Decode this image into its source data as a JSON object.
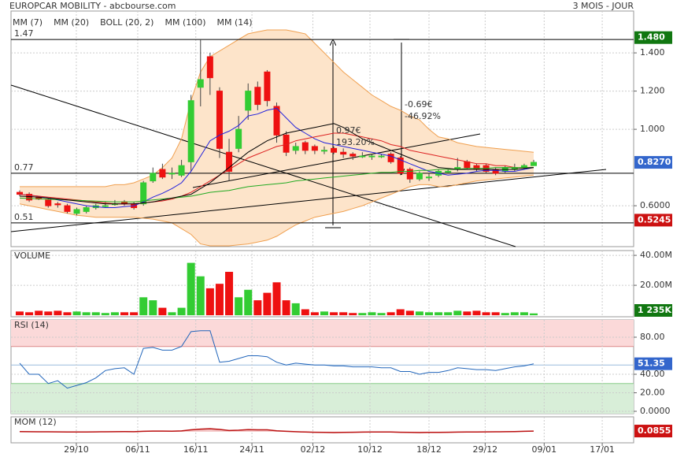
{
  "chart_data": [
    {
      "type": "candlestick",
      "title": "EUROPCAR MOBILITY - abcbourse.com",
      "subtitle": "3 MOIS - JOUR",
      "open": [
        0.67,
        0.66,
        0.645,
        0.63,
        0.61,
        0.6,
        0.56,
        0.57,
        0.59,
        0.6,
        0.61,
        0.62,
        0.61,
        0.61,
        0.73,
        0.79,
        0.77,
        0.76,
        0.83,
        1.22,
        1.38,
        1.2,
        0.88,
        0.9,
        1.1,
        1.22,
        1.3,
        1.12,
        0.97,
        0.89,
        0.93,
        0.91,
        0.89,
        0.9,
        0.88,
        0.87,
        0.86,
        0.86,
        0.86,
        0.87,
        0.85,
        0.79,
        0.74,
        0.75,
        0.76,
        0.78,
        0.79,
        0.83,
        0.81,
        0.81,
        0.79,
        0.78,
        0.79,
        0.8,
        0.81
      ],
      "high": [
        0.68,
        0.67,
        0.65,
        0.64,
        0.62,
        0.61,
        0.59,
        0.6,
        0.61,
        0.62,
        0.63,
        0.63,
        0.62,
        0.73,
        0.8,
        0.82,
        0.8,
        0.84,
        1.18,
        1.47,
        1.4,
        1.22,
        0.95,
        1.07,
        1.24,
        1.25,
        1.31,
        1.14,
        0.99,
        0.93,
        0.94,
        0.92,
        0.91,
        0.91,
        0.9,
        0.88,
        0.88,
        0.87,
        0.87,
        0.88,
        0.86,
        0.8,
        0.78,
        0.77,
        0.79,
        0.79,
        0.85,
        0.84,
        0.82,
        0.82,
        0.8,
        0.81,
        0.82,
        0.82,
        0.84
      ],
      "low": [
        0.65,
        0.62,
        0.63,
        0.59,
        0.59,
        0.56,
        0.55,
        0.56,
        0.58,
        0.59,
        0.6,
        0.6,
        0.58,
        0.6,
        0.72,
        0.74,
        0.74,
        0.75,
        0.78,
        1.12,
        1.18,
        0.85,
        0.73,
        0.88,
        1.05,
        1.1,
        1.12,
        0.93,
        0.86,
        0.87,
        0.87,
        0.87,
        0.87,
        0.87,
        0.85,
        0.84,
        0.85,
        0.84,
        0.85,
        0.82,
        0.76,
        0.72,
        0.73,
        0.73,
        0.75,
        0.77,
        0.78,
        0.79,
        0.78,
        0.77,
        0.76,
        0.77,
        0.78,
        0.79,
        0.81
      ],
      "close": [
        0.66,
        0.63,
        0.635,
        0.6,
        0.605,
        0.57,
        0.58,
        0.59,
        0.6,
        0.6,
        0.61,
        0.61,
        0.59,
        0.72,
        0.77,
        0.75,
        0.77,
        0.81,
        1.15,
        1.26,
        1.27,
        0.9,
        0.78,
        1.0,
        1.2,
        1.13,
        1.15,
        0.97,
        0.88,
        0.91,
        0.89,
        0.89,
        0.89,
        0.88,
        0.87,
        0.86,
        0.86,
        0.86,
        0.86,
        0.83,
        0.77,
        0.74,
        0.77,
        0.75,
        0.78,
        0.78,
        0.8,
        0.8,
        0.79,
        0.78,
        0.77,
        0.8,
        0.8,
        0.81,
        0.827
      ],
      "up_color": "#33cc33",
      "down_color": "#ee1111",
      "series": [
        {
          "name": "MM (7)",
          "color": "#2222dd",
          "values": [
            0.66,
            0.655,
            0.65,
            0.64,
            0.63,
            0.62,
            0.61,
            0.6,
            0.595,
            0.59,
            0.59,
            0.595,
            0.6,
            0.62,
            0.645,
            0.665,
            0.69,
            0.72,
            0.78,
            0.86,
            0.94,
            0.97,
            0.99,
            1.02,
            1.07,
            1.08,
            1.1,
            1.11,
            1.06,
            1.01,
            0.98,
            0.95,
            0.93,
            0.92,
            0.91,
            0.9,
            0.89,
            0.88,
            0.87,
            0.86,
            0.84,
            0.82,
            0.8,
            0.78,
            0.77,
            0.76,
            0.765,
            0.77,
            0.78,
            0.785,
            0.785,
            0.78,
            0.78,
            0.79,
            0.8
          ]
        },
        {
          "name": "MM (20)",
          "color": "#dd2222",
          "values": [
            0.66,
            0.655,
            0.65,
            0.645,
            0.64,
            0.635,
            0.63,
            0.625,
            0.62,
            0.615,
            0.61,
            0.61,
            0.61,
            0.615,
            0.62,
            0.625,
            0.635,
            0.65,
            0.67,
            0.7,
            0.73,
            0.76,
            0.79,
            0.82,
            0.85,
            0.87,
            0.89,
            0.91,
            0.92,
            0.94,
            0.95,
            0.96,
            0.97,
            0.98,
            0.98,
            0.97,
            0.96,
            0.95,
            0.94,
            0.92,
            0.91,
            0.89,
            0.88,
            0.87,
            0.86,
            0.85,
            0.84,
            0.83,
            0.82,
            0.82,
            0.81,
            0.81,
            0.8,
            0.8,
            0.8
          ]
        },
        {
          "name": "BOLL (20, 2)",
          "color": "#f0a050",
          "fill": "#fde4ca",
          "upper": [
            0.7,
            0.7,
            0.7,
            0.7,
            0.7,
            0.7,
            0.7,
            0.7,
            0.7,
            0.7,
            0.71,
            0.71,
            0.72,
            0.74,
            0.76,
            0.8,
            0.85,
            0.95,
            1.15,
            1.3,
            1.38,
            1.41,
            1.44,
            1.47,
            1.5,
            1.51,
            1.52,
            1.52,
            1.52,
            1.51,
            1.5,
            1.45,
            1.4,
            1.35,
            1.3,
            1.26,
            1.22,
            1.18,
            1.15,
            1.12,
            1.1,
            1.07,
            1.05,
            1.0,
            0.96,
            0.95,
            0.93,
            0.92,
            0.91,
            0.905,
            0.9,
            0.895,
            0.89,
            0.885,
            0.88
          ],
          "lower": [
            0.61,
            0.6,
            0.59,
            0.58,
            0.57,
            0.56,
            0.55,
            0.545,
            0.54,
            0.54,
            0.54,
            0.54,
            0.54,
            0.535,
            0.53,
            0.52,
            0.51,
            0.48,
            0.45,
            0.4,
            0.39,
            0.39,
            0.39,
            0.395,
            0.4,
            0.41,
            0.42,
            0.44,
            0.47,
            0.5,
            0.52,
            0.54,
            0.55,
            0.56,
            0.57,
            0.585,
            0.6,
            0.62,
            0.64,
            0.66,
            0.68,
            0.7,
            0.71,
            0.71,
            0.7,
            0.7,
            0.71,
            0.72,
            0.73,
            0.735,
            0.74,
            0.745,
            0.75,
            0.755,
            0.76
          ]
        },
        {
          "name": "MM (100)",
          "color": "#22aa22",
          "values": [
            0.64,
            0.638,
            0.636,
            0.634,
            0.632,
            0.63,
            0.628,
            0.626,
            0.624,
            0.622,
            0.62,
            0.62,
            0.62,
            0.625,
            0.63,
            0.635,
            0.64,
            0.645,
            0.65,
            0.66,
            0.67,
            0.675,
            0.68,
            0.69,
            0.7,
            0.705,
            0.71,
            0.715,
            0.72,
            0.73,
            0.735,
            0.74,
            0.745,
            0.75,
            0.755,
            0.76,
            0.765,
            0.77,
            0.775,
            0.775,
            0.78,
            0.78,
            0.785,
            0.785,
            0.79,
            0.79,
            0.79,
            0.795,
            0.795,
            0.795,
            0.8,
            0.8,
            0.8,
            0.8,
            0.8
          ]
        },
        {
          "name": "MM (14)",
          "color": "#000000",
          "values": [
            0.65,
            0.648,
            0.645,
            0.64,
            0.635,
            0.63,
            0.625,
            0.62,
            0.615,
            0.61,
            0.61,
            0.61,
            0.61,
            0.615,
            0.62,
            0.63,
            0.64,
            0.65,
            0.66,
            0.69,
            0.72,
            0.76,
            0.8,
            0.84,
            0.88,
            0.91,
            0.94,
            0.96,
            0.98,
            0.99,
            1.0,
            1.01,
            1.02,
            1.03,
            1.01,
            0.98,
            0.95,
            0.93,
            0.91,
            0.89,
            0.87,
            0.85,
            0.83,
            0.82,
            0.8,
            0.795,
            0.79,
            0.79,
            0.79,
            0.79,
            0.79,
            0.79,
            0.79,
            0.795,
            0.8
          ]
        }
      ],
      "levels": [
        1.47,
        0.77,
        0.51
      ],
      "badges": [
        {
          "value": 1.48,
          "label": "1.480",
          "color": "#117711"
        },
        {
          "value": 0.827,
          "label": "0.8270",
          "color": "#3366cc"
        },
        {
          "value": 0.5245,
          "label": "0.5245",
          "color": "#cc1111"
        }
      ],
      "annotations": [
        "-0.69€",
        "-46.92%",
        "0.97€",
        "193.20%"
      ],
      "xlim": [
        -0.91,
        64.5
      ],
      "xticks": [
        {
          "value": 5.95,
          "label": "29/10"
        },
        {
          "value": 12.4,
          "label": "06/11"
        },
        {
          "value": 18.5,
          "label": "16/11"
        },
        {
          "value": 24.4,
          "label": "24/11"
        },
        {
          "value": 30.8,
          "label": "02/12"
        },
        {
          "value": 36.8,
          "label": "10/12"
        },
        {
          "value": 43.0,
          "label": "18/12"
        },
        {
          "value": 48.9,
          "label": "29/12"
        },
        {
          "value": 55.1,
          "label": "09/01"
        },
        {
          "value": 61.2,
          "label": "17/01"
        }
      ],
      "ylim": [
        0.386,
        1.619
      ],
      "yticks": [
        {
          "value": 0.6,
          "label": "0.6000"
        },
        {
          "value": 1.0,
          "label": "1.000"
        },
        {
          "value": 1.2,
          "label": "1.200"
        },
        {
          "value": 1.4,
          "label": "1.400"
        }
      ],
      "grid": true
    },
    {
      "type": "bar",
      "title": "VOLUME",
      "values": [
        2500000,
        2000000,
        3000000,
        2500000,
        3000000,
        2000000,
        2500000,
        2000000,
        2000000,
        1500000,
        2000000,
        2000000,
        2000000,
        12000000,
        10000000,
        5000000,
        2000000,
        5000000,
        35000000,
        26000000,
        18000000,
        21000000,
        29000000,
        12000000,
        17000000,
        10000000,
        15000000,
        22000000,
        10000000,
        8000000,
        4000000,
        2000000,
        2500000,
        2000000,
        2000000,
        1500000,
        1500000,
        2000000,
        1500000,
        2000000,
        4000000,
        3000000,
        2500000,
        2000000,
        2000000,
        2000000,
        3000000,
        2500000,
        3000000,
        2000000,
        2000000,
        1500000,
        2000000,
        2000000,
        1235000
      ],
      "ylim": [
        -1000000,
        43200000
      ],
      "yticks": [
        {
          "value": 20000000,
          "label": "20.00M"
        },
        {
          "value": 40000000,
          "label": "40.00M"
        }
      ],
      "badges": [
        {
          "value": 1235000,
          "label": "1 235K",
          "color": "#117711"
        }
      ],
      "grid": true
    },
    {
      "type": "line",
      "title": "RSI (14)",
      "color": "#2266bb",
      "values": [
        52,
        40,
        40,
        30,
        33,
        25,
        28,
        31,
        36,
        44,
        46,
        47,
        40,
        68,
        69,
        66,
        66,
        70,
        86,
        87,
        87,
        53,
        54,
        57,
        60,
        60,
        59,
        53,
        50,
        52,
        51,
        50,
        50,
        49,
        49,
        48,
        48,
        48,
        47,
        47,
        43,
        43,
        40,
        42,
        42,
        44,
        47,
        46,
        45,
        45,
        44,
        46,
        48,
        49,
        51.35
      ],
      "ylim": [
        -2.55,
        98.7
      ],
      "yticks": [
        {
          "value": 0,
          "label": "0.0000"
        },
        {
          "value": 20,
          "label": "20.00"
        },
        {
          "value": 40,
          "label": "40.00"
        },
        {
          "value": 80,
          "label": "80.00"
        }
      ],
      "overbought": 70,
      "oversold": 30,
      "midline": 50,
      "badges": [
        {
          "value": 51.35,
          "label": "51.35",
          "color": "#3366cc"
        }
      ],
      "grid": true
    },
    {
      "type": "line",
      "title": "MOM (12)",
      "color": "#bb1111",
      "values": [
        0.02,
        0.0,
        -0.01,
        -0.02,
        -0.03,
        -0.04,
        -0.05,
        -0.04,
        -0.03,
        -0.02,
        0.0,
        0.01,
        0.0,
        0.05,
        0.08,
        0.08,
        0.07,
        0.1,
        0.25,
        0.35,
        0.4,
        0.3,
        0.15,
        0.2,
        0.28,
        0.25,
        0.25,
        0.12,
        0.05,
        0.0,
        -0.05,
        -0.08,
        -0.1,
        -0.12,
        -0.1,
        -0.08,
        -0.06,
        -0.05,
        -0.04,
        -0.05,
        -0.08,
        -0.1,
        -0.12,
        -0.1,
        -0.09,
        -0.08,
        -0.06,
        -0.05,
        -0.04,
        -0.03,
        -0.02,
        0.0,
        0.02,
        0.05,
        0.0855
      ],
      "ylim": [
        -1.5,
        2.0
      ],
      "badges": [
        {
          "value": 0.0855,
          "label": "0.0855",
          "color": "#cc1111"
        }
      ],
      "grid": true
    }
  ]
}
